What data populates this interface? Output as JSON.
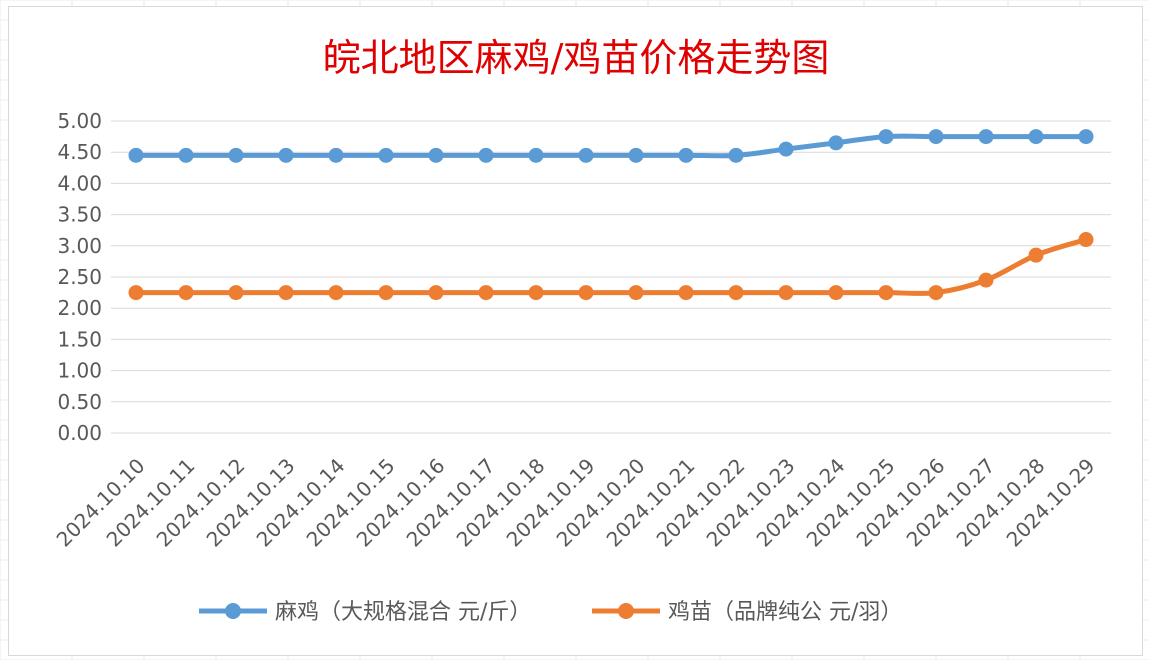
{
  "chart_data": {
    "type": "line",
    "title": "皖北地区麻鸡/鸡苗价格走势图",
    "categories": [
      "2024.10.10",
      "2024.10.11",
      "2024.10.12",
      "2024.10.13",
      "2024.10.14",
      "2024.10.15",
      "2024.10.16",
      "2024.10.17",
      "2024.10.18",
      "2024.10.19",
      "2024.10.20",
      "2024.10.21",
      "2024.10.22",
      "2024.10.23",
      "2024.10.24",
      "2024.10.25",
      "2024.10.26",
      "2024.10.27",
      "2024.10.28",
      "2024.10.29"
    ],
    "series": [
      {
        "name": "麻鸡（大规格混合 元/斤）",
        "color": "#5b9bd5",
        "values": [
          4.45,
          4.45,
          4.45,
          4.45,
          4.45,
          4.45,
          4.45,
          4.45,
          4.45,
          4.45,
          4.45,
          4.45,
          4.45,
          4.55,
          4.65,
          4.75,
          4.75,
          4.75,
          4.75,
          4.75
        ]
      },
      {
        "name": "鸡苗（品牌纯公 元/羽）",
        "color": "#ed7d31",
        "values": [
          2.25,
          2.25,
          2.25,
          2.25,
          2.25,
          2.25,
          2.25,
          2.25,
          2.25,
          2.25,
          2.25,
          2.25,
          2.25,
          2.25,
          2.25,
          2.25,
          2.25,
          2.45,
          2.85,
          3.1
        ]
      }
    ],
    "y_ticks": [
      "0.00",
      "0.50",
      "1.00",
      "1.50",
      "2.00",
      "2.50",
      "3.00",
      "3.50",
      "4.00",
      "4.50",
      "5.00"
    ],
    "ylim": [
      0,
      5
    ],
    "grid": true,
    "legend": "bottom",
    "title_color": "#e00000"
  }
}
